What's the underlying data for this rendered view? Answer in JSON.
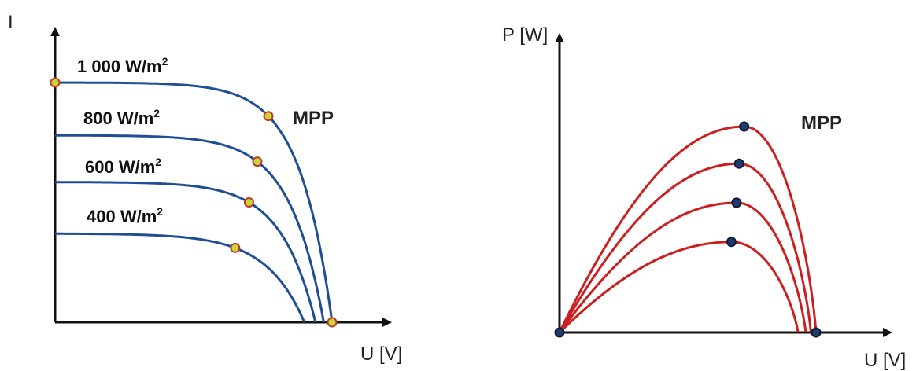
{
  "chart_data": [
    {
      "type": "line",
      "title": "",
      "xlabel": "U [V]",
      "ylabel": "I",
      "mpp_label": "MPP",
      "grid": false,
      "series": [
        {
          "name": "1 000 W/m",
          "superscript": "2",
          "isc": 1.0,
          "voc": 1.0,
          "mpp": [
            0.77,
            0.86
          ]
        },
        {
          "name": "800 W/m",
          "superscript": "2",
          "isc": 0.78,
          "voc": 0.97,
          "mpp": [
            0.73,
            0.67
          ]
        },
        {
          "name": "600 W/m",
          "superscript": "2",
          "isc": 0.585,
          "voc": 0.94,
          "mpp": [
            0.7,
            0.5
          ]
        },
        {
          "name": "400 W/m",
          "superscript": "2",
          "isc": 0.37,
          "voc": 0.9,
          "mpp": [
            0.65,
            0.31
          ]
        }
      ],
      "colors": {
        "curve": "#1f4e96",
        "marker_fill": "#c8d63a",
        "marker_stroke": "#c0392b",
        "axis": "#111111"
      }
    },
    {
      "type": "line",
      "title": "",
      "xlabel": "U [V]",
      "ylabel": "P [W]",
      "mpp_label": "MPP",
      "grid": false,
      "series": [
        {
          "voc": 1.0,
          "mpp": [
            0.72,
            1.0
          ]
        },
        {
          "voc": 0.98,
          "mpp": [
            0.7,
            0.82
          ]
        },
        {
          "voc": 0.96,
          "mpp": [
            0.69,
            0.63
          ]
        },
        {
          "voc": 0.93,
          "mpp": [
            0.67,
            0.44
          ]
        }
      ],
      "colors": {
        "curve": "#cc1f1f",
        "marker_fill": "#1f3a6e",
        "marker_stroke": "#0d1a33",
        "axis": "#111111"
      }
    }
  ]
}
